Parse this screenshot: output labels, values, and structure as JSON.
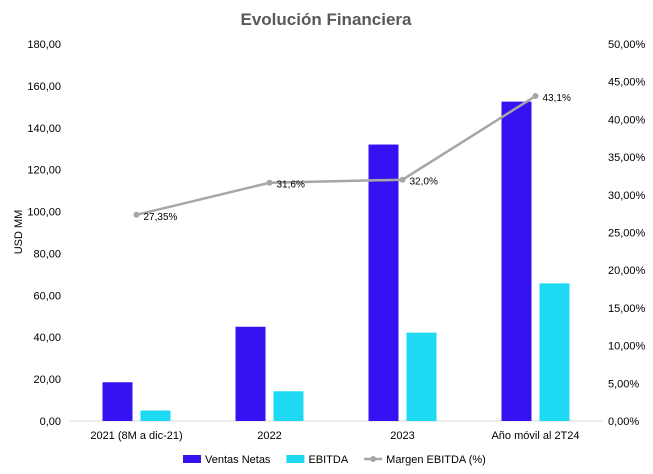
{
  "chart_data": {
    "type": "bar",
    "title": "Evolución Financiera",
    "ylabel": "USD MM",
    "ylabel_right": "",
    "categories": [
      "2021 (8M a dic-21)",
      "2022",
      "2023",
      "Año móvil al 2T24"
    ],
    "series": [
      {
        "name": "Ventas Netas",
        "type": "bar",
        "axis": "left",
        "color": "#3512F2",
        "values": [
          18.5,
          45.0,
          132.0,
          152.5
        ]
      },
      {
        "name": "EBITDA",
        "type": "bar",
        "axis": "left",
        "color": "#1ED9F2",
        "values": [
          5.0,
          14.2,
          42.2,
          65.7
        ]
      },
      {
        "name": "Margen EBITDA (%)",
        "type": "line",
        "axis": "right",
        "color": "#A6A6A6",
        "values": [
          27.35,
          31.6,
          32.0,
          43.1
        ],
        "labels": [
          "27,35%",
          "31,6%",
          "32,0%",
          "43,1%"
        ]
      }
    ],
    "ylim": [
      0,
      180
    ],
    "yticks": [
      "0,00",
      "20,00",
      "40,00",
      "60,00",
      "80,00",
      "100,00",
      "120,00",
      "140,00",
      "160,00",
      "180,00"
    ],
    "ylim_right": [
      0,
      50
    ],
    "yticks_right": [
      "0,00%",
      "5,00%",
      "10,00%",
      "15,00%",
      "20,00%",
      "25,00%",
      "30,00%",
      "35,00%",
      "40,00%",
      "45,00%",
      "50,00%"
    ],
    "grid": false,
    "legend_position": "bottom"
  }
}
